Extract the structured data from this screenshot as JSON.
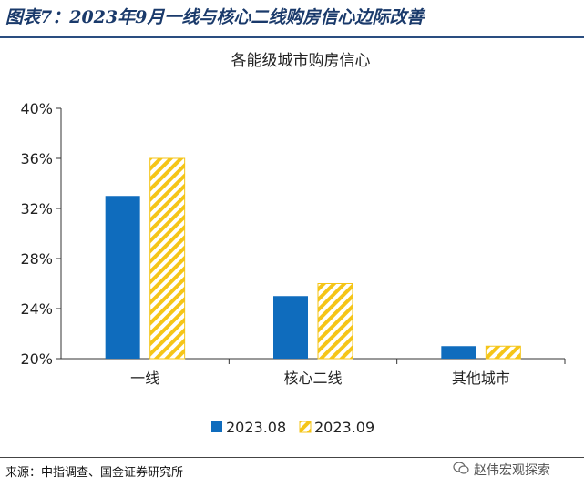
{
  "figure_title": "图表7：2023年9月一线与核心二线购房信心边际改善",
  "source": "来源：中指调查、国金证券研究所",
  "watermark": "赵伟宏观探索",
  "watermark_icon": "wechat-icon",
  "chart_data": {
    "type": "bar",
    "title": "各能级城市购房信心",
    "categories": [
      "一线",
      "核心二线",
      "其他城市"
    ],
    "series": [
      {
        "name": "2023.08",
        "values": [
          33,
          25,
          21
        ],
        "color": "#0f6cbd",
        "pattern": "solid"
      },
      {
        "name": "2023.09",
        "values": [
          36,
          26,
          21
        ],
        "color": "#f5c518",
        "pattern": "hatched"
      }
    ],
    "ylim": [
      20,
      40
    ],
    "yticks": [
      20,
      24,
      28,
      32,
      36,
      40
    ],
    "ytick_labels": [
      "20%",
      "24%",
      "28%",
      "32%",
      "36%",
      "40%"
    ],
    "xlabel": "",
    "ylabel": "",
    "grid": false,
    "legend_position": "bottom"
  }
}
